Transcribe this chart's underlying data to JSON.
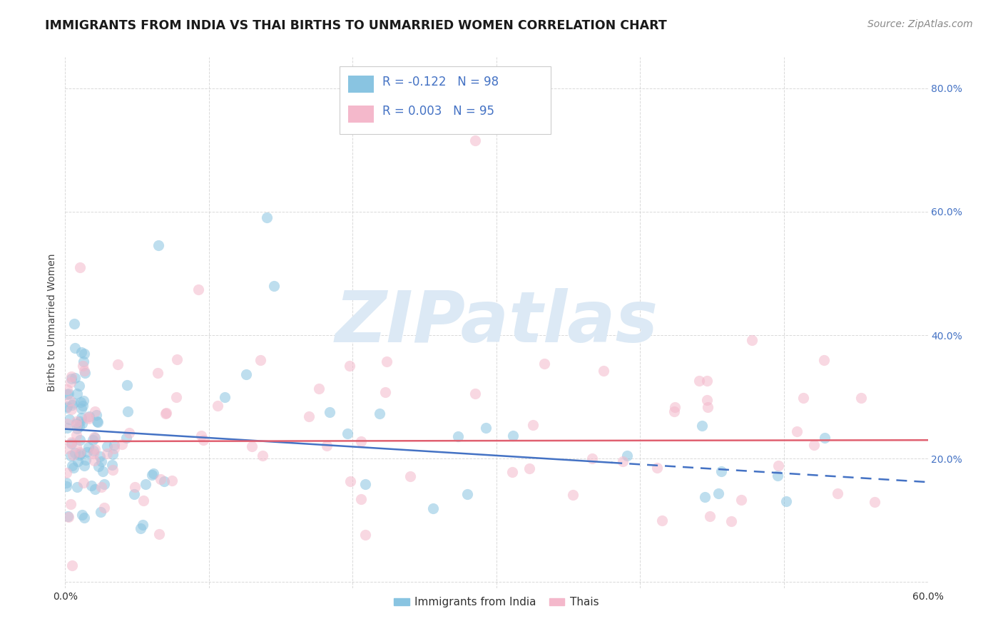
{
  "title": "IMMIGRANTS FROM INDIA VS THAI BIRTHS TO UNMARRIED WOMEN CORRELATION CHART",
  "source": "Source: ZipAtlas.com",
  "ylabel": "Births to Unmarried Women",
  "xlim": [
    0.0,
    0.6
  ],
  "ylim": [
    -0.01,
    0.85
  ],
  "blue_color": "#89c4e1",
  "pink_color": "#f4b8cb",
  "blue_line_color": "#4472c4",
  "pink_line_color": "#e06070",
  "legend_text_color": "#4472c4",
  "grid_color": "#d0d0d0",
  "background_color": "#ffffff",
  "title_fontsize": 12.5,
  "source_fontsize": 10,
  "axis_label_fontsize": 10,
  "legend_fontsize": 12,
  "marker_size": 120,
  "marker_alpha": 0.55,
  "watermark_text": "ZIPatlas",
  "watermark_color": "#dce9f5",
  "legend1_line1": "R = -0.122   N = 98",
  "legend1_line2": "R = 0.003   N = 95",
  "bottom_legend_1": "Immigrants from India",
  "bottom_legend_2": "Thais"
}
